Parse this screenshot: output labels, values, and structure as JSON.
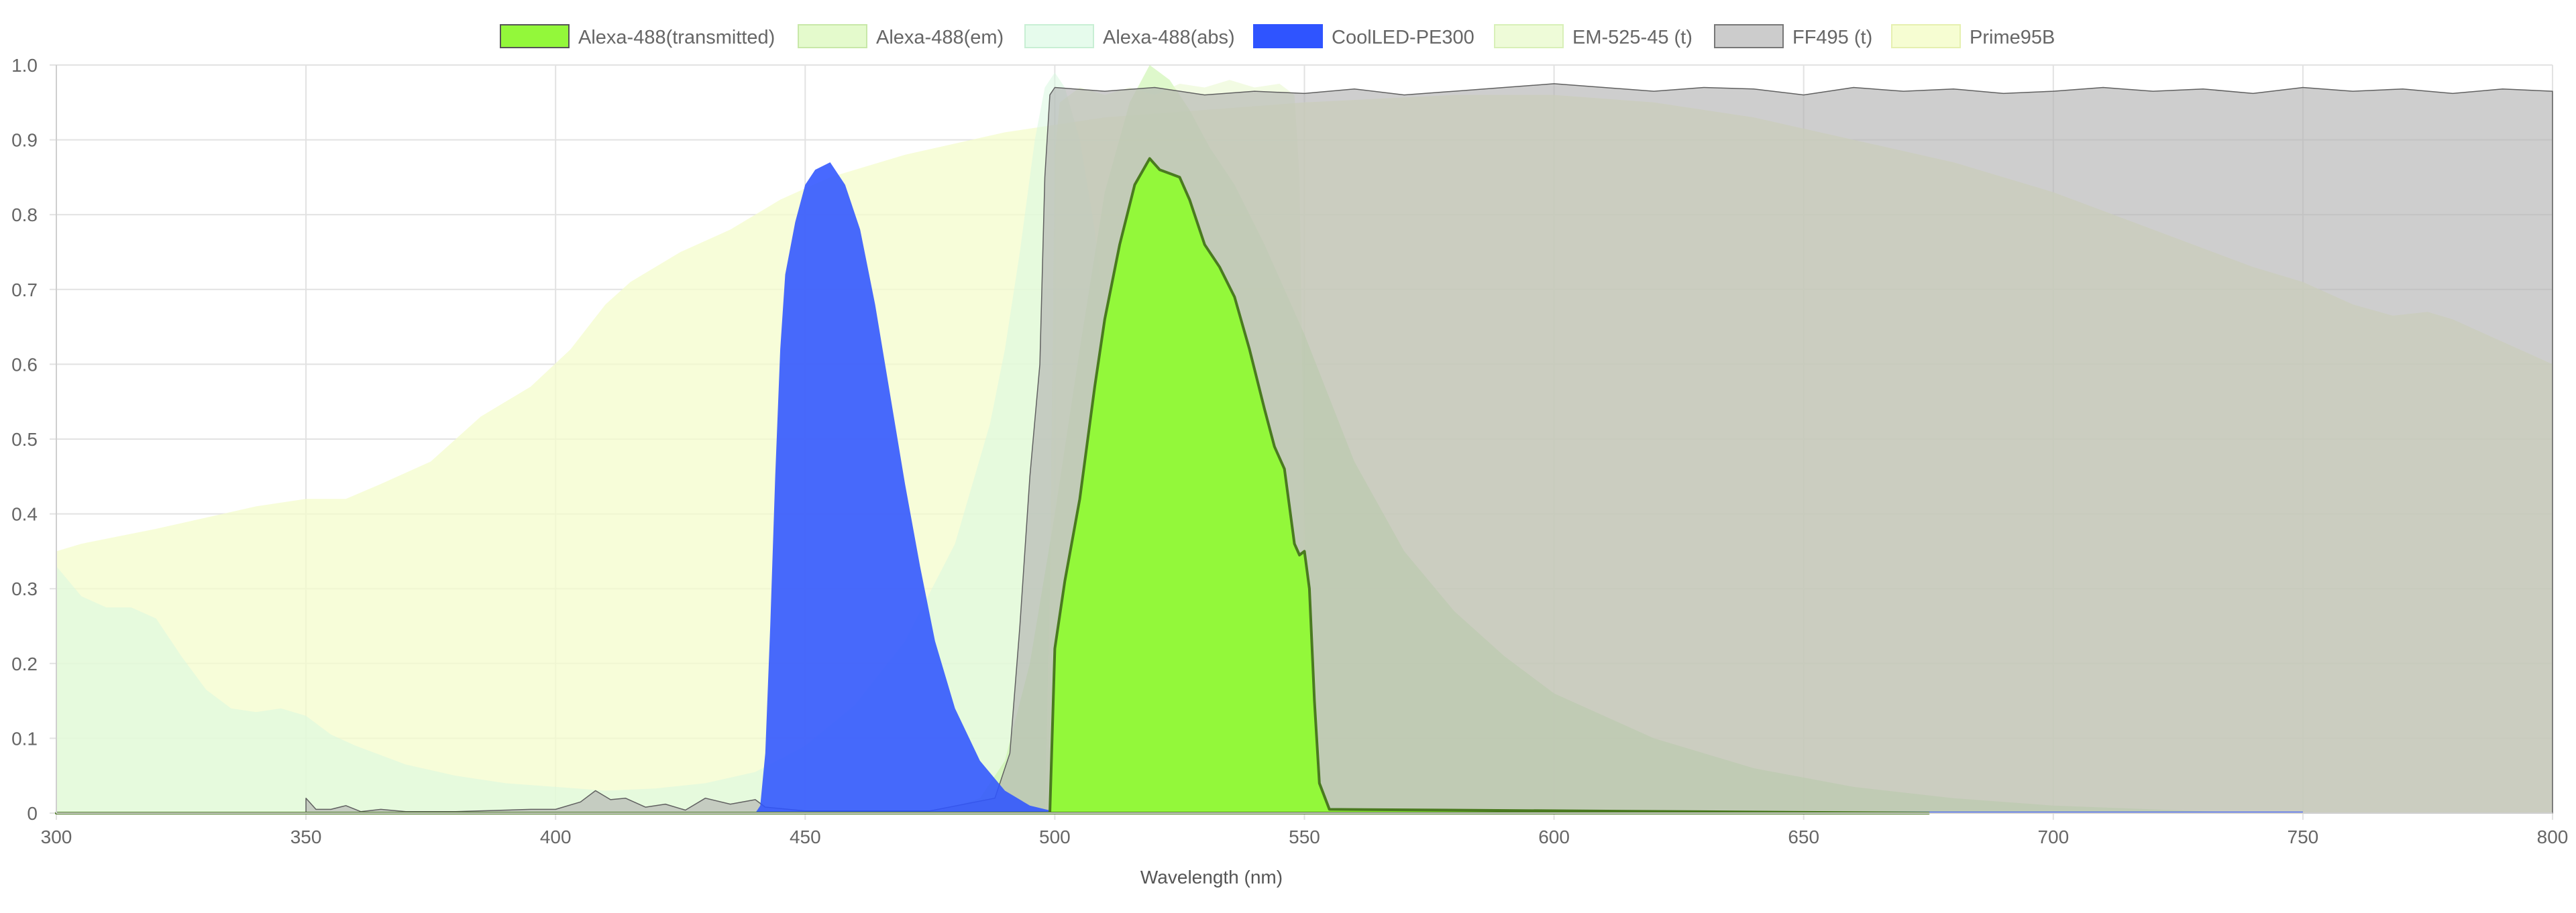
{
  "chart_data": {
    "type": "area",
    "title": "",
    "xlabel": "Wavelength (nm)",
    "ylabel": "",
    "xlim": [
      300,
      800
    ],
    "ylim": [
      0,
      1.0
    ],
    "x_ticks": [
      "300",
      "350",
      "400",
      "450",
      "500",
      "550",
      "600",
      "650",
      "700",
      "750",
      "800"
    ],
    "y_ticks": [
      "0",
      "0.1",
      "0.2",
      "0.3",
      "0.4",
      "0.5",
      "0.6",
      "0.7",
      "0.8",
      "0.9",
      "1.0"
    ],
    "grid": true,
    "legend_position": "top-center",
    "series": [
      {
        "name": "Prime95B",
        "fill": "#f4fccc",
        "fill_opacity": 0.75,
        "stroke": "none",
        "points": [
          [
            300,
            0.35
          ],
          [
            305,
            0.36
          ],
          [
            320,
            0.38
          ],
          [
            340,
            0.41
          ],
          [
            350,
            0.42
          ],
          [
            358,
            0.42
          ],
          [
            365,
            0.44
          ],
          [
            375,
            0.47
          ],
          [
            385,
            0.53
          ],
          [
            395,
            0.57
          ],
          [
            403,
            0.62
          ],
          [
            410,
            0.68
          ],
          [
            415,
            0.71
          ],
          [
            425,
            0.75
          ],
          [
            435,
            0.78
          ],
          [
            445,
            0.82
          ],
          [
            455,
            0.85
          ],
          [
            470,
            0.88
          ],
          [
            490,
            0.91
          ],
          [
            510,
            0.93
          ],
          [
            530,
            0.94
          ],
          [
            550,
            0.95
          ],
          [
            580,
            0.96
          ],
          [
            600,
            0.96
          ],
          [
            620,
            0.95
          ],
          [
            640,
            0.93
          ],
          [
            660,
            0.9
          ],
          [
            680,
            0.87
          ],
          [
            700,
            0.83
          ],
          [
            720,
            0.78
          ],
          [
            740,
            0.73
          ],
          [
            750,
            0.71
          ],
          [
            760,
            0.68
          ],
          [
            768,
            0.665
          ],
          [
            775,
            0.67
          ],
          [
            780,
            0.66
          ],
          [
            790,
            0.63
          ],
          [
            800,
            0.6
          ]
        ]
      },
      {
        "name": "Alexa-488(abs)",
        "fill": "#d8f8e0",
        "fill_opacity": 0.55,
        "stroke": "none",
        "points": [
          [
            300,
            0.33
          ],
          [
            305,
            0.29
          ],
          [
            310,
            0.275
          ],
          [
            315,
            0.275
          ],
          [
            320,
            0.26
          ],
          [
            325,
            0.21
          ],
          [
            330,
            0.165
          ],
          [
            335,
            0.14
          ],
          [
            340,
            0.135
          ],
          [
            345,
            0.14
          ],
          [
            350,
            0.13
          ],
          [
            355,
            0.105
          ],
          [
            360,
            0.09
          ],
          [
            370,
            0.065
          ],
          [
            380,
            0.05
          ],
          [
            390,
            0.04
          ],
          [
            400,
            0.035
          ],
          [
            410,
            0.03
          ],
          [
            420,
            0.033
          ],
          [
            430,
            0.04
          ],
          [
            440,
            0.055
          ],
          [
            450,
            0.09
          ],
          [
            460,
            0.145
          ],
          [
            470,
            0.23
          ],
          [
            480,
            0.36
          ],
          [
            487,
            0.52
          ],
          [
            490,
            0.62
          ],
          [
            493,
            0.75
          ],
          [
            496,
            0.9
          ],
          [
            498,
            0.97
          ],
          [
            500,
            0.99
          ],
          [
            502,
            0.97
          ],
          [
            505,
            0.9
          ],
          [
            508,
            0.78
          ],
          [
            512,
            0.55
          ],
          [
            517,
            0.32
          ],
          [
            522,
            0.17
          ],
          [
            527,
            0.09
          ],
          [
            533,
            0.05
          ],
          [
            540,
            0.03
          ],
          [
            550,
            0.015
          ],
          [
            560,
            0.005
          ],
          [
            570,
            0
          ]
        ]
      },
      {
        "name": "Alexa-488(em)",
        "fill": "#c8f4a8",
        "fill_opacity": 0.6,
        "stroke": "none",
        "points": [
          [
            470,
            0
          ],
          [
            478,
            0.005
          ],
          [
            485,
            0.02
          ],
          [
            490,
            0.07
          ],
          [
            495,
            0.2
          ],
          [
            500,
            0.4
          ],
          [
            505,
            0.62
          ],
          [
            510,
            0.83
          ],
          [
            515,
            0.95
          ],
          [
            519,
            1.0
          ],
          [
            523,
            0.98
          ],
          [
            527,
            0.94
          ],
          [
            531,
            0.89
          ],
          [
            536,
            0.84
          ],
          [
            542,
            0.76
          ],
          [
            550,
            0.64
          ],
          [
            560,
            0.47
          ],
          [
            570,
            0.35
          ],
          [
            580,
            0.27
          ],
          [
            590,
            0.21
          ],
          [
            600,
            0.16
          ],
          [
            620,
            0.1
          ],
          [
            640,
            0.06
          ],
          [
            660,
            0.035
          ],
          [
            680,
            0.02
          ],
          [
            700,
            0.01
          ],
          [
            720,
            0.005
          ],
          [
            740,
            0
          ]
        ]
      },
      {
        "name": "EM-525-45 (t)",
        "fill": "#e6f8c8",
        "fill_opacity": 0.5,
        "stroke": "none",
        "points": [
          [
            498,
            0
          ],
          [
            499,
            0.3
          ],
          [
            500,
            0.88
          ],
          [
            501,
            0.95
          ],
          [
            505,
            0.97
          ],
          [
            510,
            0.96
          ],
          [
            515,
            0.97
          ],
          [
            520,
            0.96
          ],
          [
            525,
            0.975
          ],
          [
            530,
            0.97
          ],
          [
            535,
            0.98
          ],
          [
            540,
            0.97
          ],
          [
            545,
            0.975
          ],
          [
            548,
            0.96
          ],
          [
            549,
            0.85
          ],
          [
            550,
            0.4
          ],
          [
            551,
            0
          ]
        ]
      },
      {
        "name": "FF495 (t)",
        "fill": "#b0b0b0",
        "fill_opacity": 0.62,
        "stroke": "#606060",
        "points": [
          [
            350,
            0.02
          ],
          [
            352,
            0.005
          ],
          [
            355,
            0.005
          ],
          [
            358,
            0.01
          ],
          [
            361,
            0.002
          ],
          [
            365,
            0.005
          ],
          [
            370,
            0.002
          ],
          [
            380,
            0.002
          ],
          [
            395,
            0.005
          ],
          [
            400,
            0.005
          ],
          [
            405,
            0.015
          ],
          [
            408,
            0.03
          ],
          [
            411,
            0.018
          ],
          [
            414,
            0.02
          ],
          [
            418,
            0.008
          ],
          [
            422,
            0.012
          ],
          [
            426,
            0.004
          ],
          [
            430,
            0.02
          ],
          [
            435,
            0.012
          ],
          [
            440,
            0.018
          ],
          [
            442,
            0.008
          ],
          [
            450,
            0.003
          ],
          [
            475,
            0.003
          ],
          [
            488,
            0.02
          ],
          [
            491,
            0.08
          ],
          [
            493,
            0.25
          ],
          [
            495,
            0.45
          ],
          [
            497,
            0.6
          ],
          [
            498,
            0.85
          ],
          [
            499,
            0.96
          ],
          [
            500,
            0.97
          ],
          [
            510,
            0.965
          ],
          [
            520,
            0.97
          ],
          [
            530,
            0.96
          ],
          [
            540,
            0.965
          ],
          [
            550,
            0.962
          ],
          [
            560,
            0.968
          ],
          [
            570,
            0.96
          ],
          [
            580,
            0.965
          ],
          [
            590,
            0.97
          ],
          [
            600,
            0.975
          ],
          [
            610,
            0.97
          ],
          [
            620,
            0.965
          ],
          [
            630,
            0.97
          ],
          [
            640,
            0.968
          ],
          [
            650,
            0.96
          ],
          [
            660,
            0.97
          ],
          [
            670,
            0.965
          ],
          [
            680,
            0.968
          ],
          [
            690,
            0.962
          ],
          [
            700,
            0.965
          ],
          [
            710,
            0.97
          ],
          [
            720,
            0.965
          ],
          [
            730,
            0.968
          ],
          [
            740,
            0.962
          ],
          [
            750,
            0.97
          ],
          [
            760,
            0.965
          ],
          [
            770,
            0.968
          ],
          [
            780,
            0.962
          ],
          [
            790,
            0.968
          ],
          [
            800,
            0.965
          ]
        ]
      },
      {
        "name": "CoolLED-PE300",
        "fill": "#2f54ff",
        "fill_opacity": 0.88,
        "stroke": "none",
        "points": [
          [
            300,
            0
          ],
          [
            440,
            0
          ],
          [
            441,
            0.01
          ],
          [
            442,
            0.08
          ],
          [
            443,
            0.25
          ],
          [
            444,
            0.45
          ],
          [
            445,
            0.62
          ],
          [
            446,
            0.72
          ],
          [
            448,
            0.79
          ],
          [
            450,
            0.84
          ],
          [
            452,
            0.86
          ],
          [
            455,
            0.87
          ],
          [
            458,
            0.84
          ],
          [
            461,
            0.78
          ],
          [
            464,
            0.68
          ],
          [
            467,
            0.56
          ],
          [
            470,
            0.44
          ],
          [
            473,
            0.33
          ],
          [
            476,
            0.23
          ],
          [
            480,
            0.14
          ],
          [
            485,
            0.07
          ],
          [
            490,
            0.03
          ],
          [
            495,
            0.01
          ],
          [
            500,
            0.002
          ],
          [
            750,
            0.002
          ]
        ]
      },
      {
        "name": "Alexa-488(transmitted)",
        "fill": "#93f83a",
        "fill_opacity": 1.0,
        "stroke": "#4a7a20",
        "points": [
          [
            300,
            0
          ],
          [
            499,
            0
          ],
          [
            500,
            0.22
          ],
          [
            502,
            0.31
          ],
          [
            505,
            0.42
          ],
          [
            508,
            0.57
          ],
          [
            510,
            0.66
          ],
          [
            513,
            0.76
          ],
          [
            516,
            0.84
          ],
          [
            519,
            0.875
          ],
          [
            521,
            0.86
          ],
          [
            523,
            0.855
          ],
          [
            525,
            0.85
          ],
          [
            527,
            0.82
          ],
          [
            530,
            0.76
          ],
          [
            533,
            0.73
          ],
          [
            536,
            0.69
          ],
          [
            539,
            0.62
          ],
          [
            542,
            0.54
          ],
          [
            544,
            0.49
          ],
          [
            546,
            0.46
          ],
          [
            548,
            0.36
          ],
          [
            549,
            0.345
          ],
          [
            550,
            0.35
          ],
          [
            551,
            0.3
          ],
          [
            552,
            0.15
          ],
          [
            553,
            0.04
          ],
          [
            555,
            0.005
          ],
          [
            675,
            0
          ]
        ]
      }
    ]
  }
}
